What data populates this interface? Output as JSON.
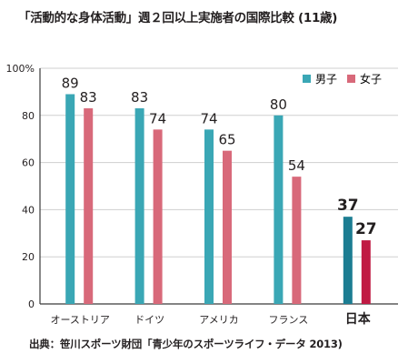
{
  "title": "「活動的な身体活動」週２回以上実施者の国際比較 (11歳)",
  "source": "出典：笹川スポーツ財団「青少年のスポーツライフ・データ 2013)",
  "chart_data": {
    "type": "bar",
    "categories": [
      "オーストリア",
      "ドイツ",
      "アメリカ",
      "フランス",
      "日本"
    ],
    "series": [
      {
        "name": "男子",
        "values": [
          89,
          83,
          74,
          80,
          37
        ]
      },
      {
        "name": "女子",
        "values": [
          83,
          74,
          65,
          54,
          27
        ]
      }
    ],
    "ylim": [
      0,
      100
    ],
    "yticks": [
      "100%",
      "80",
      "60",
      "40",
      "20",
      "0"
    ],
    "ytick_values": [
      100,
      80,
      60,
      40,
      20,
      0
    ],
    "grid": true,
    "legend": "top-right",
    "colors": {
      "male": "#3aa7b5",
      "female": "#d8697a",
      "male_highlight": "#1c7d92",
      "female_highlight": "#c01a43",
      "grid": "#cfcfcf",
      "axis": "#3b3b3b"
    },
    "highlight_category": "日本"
  }
}
